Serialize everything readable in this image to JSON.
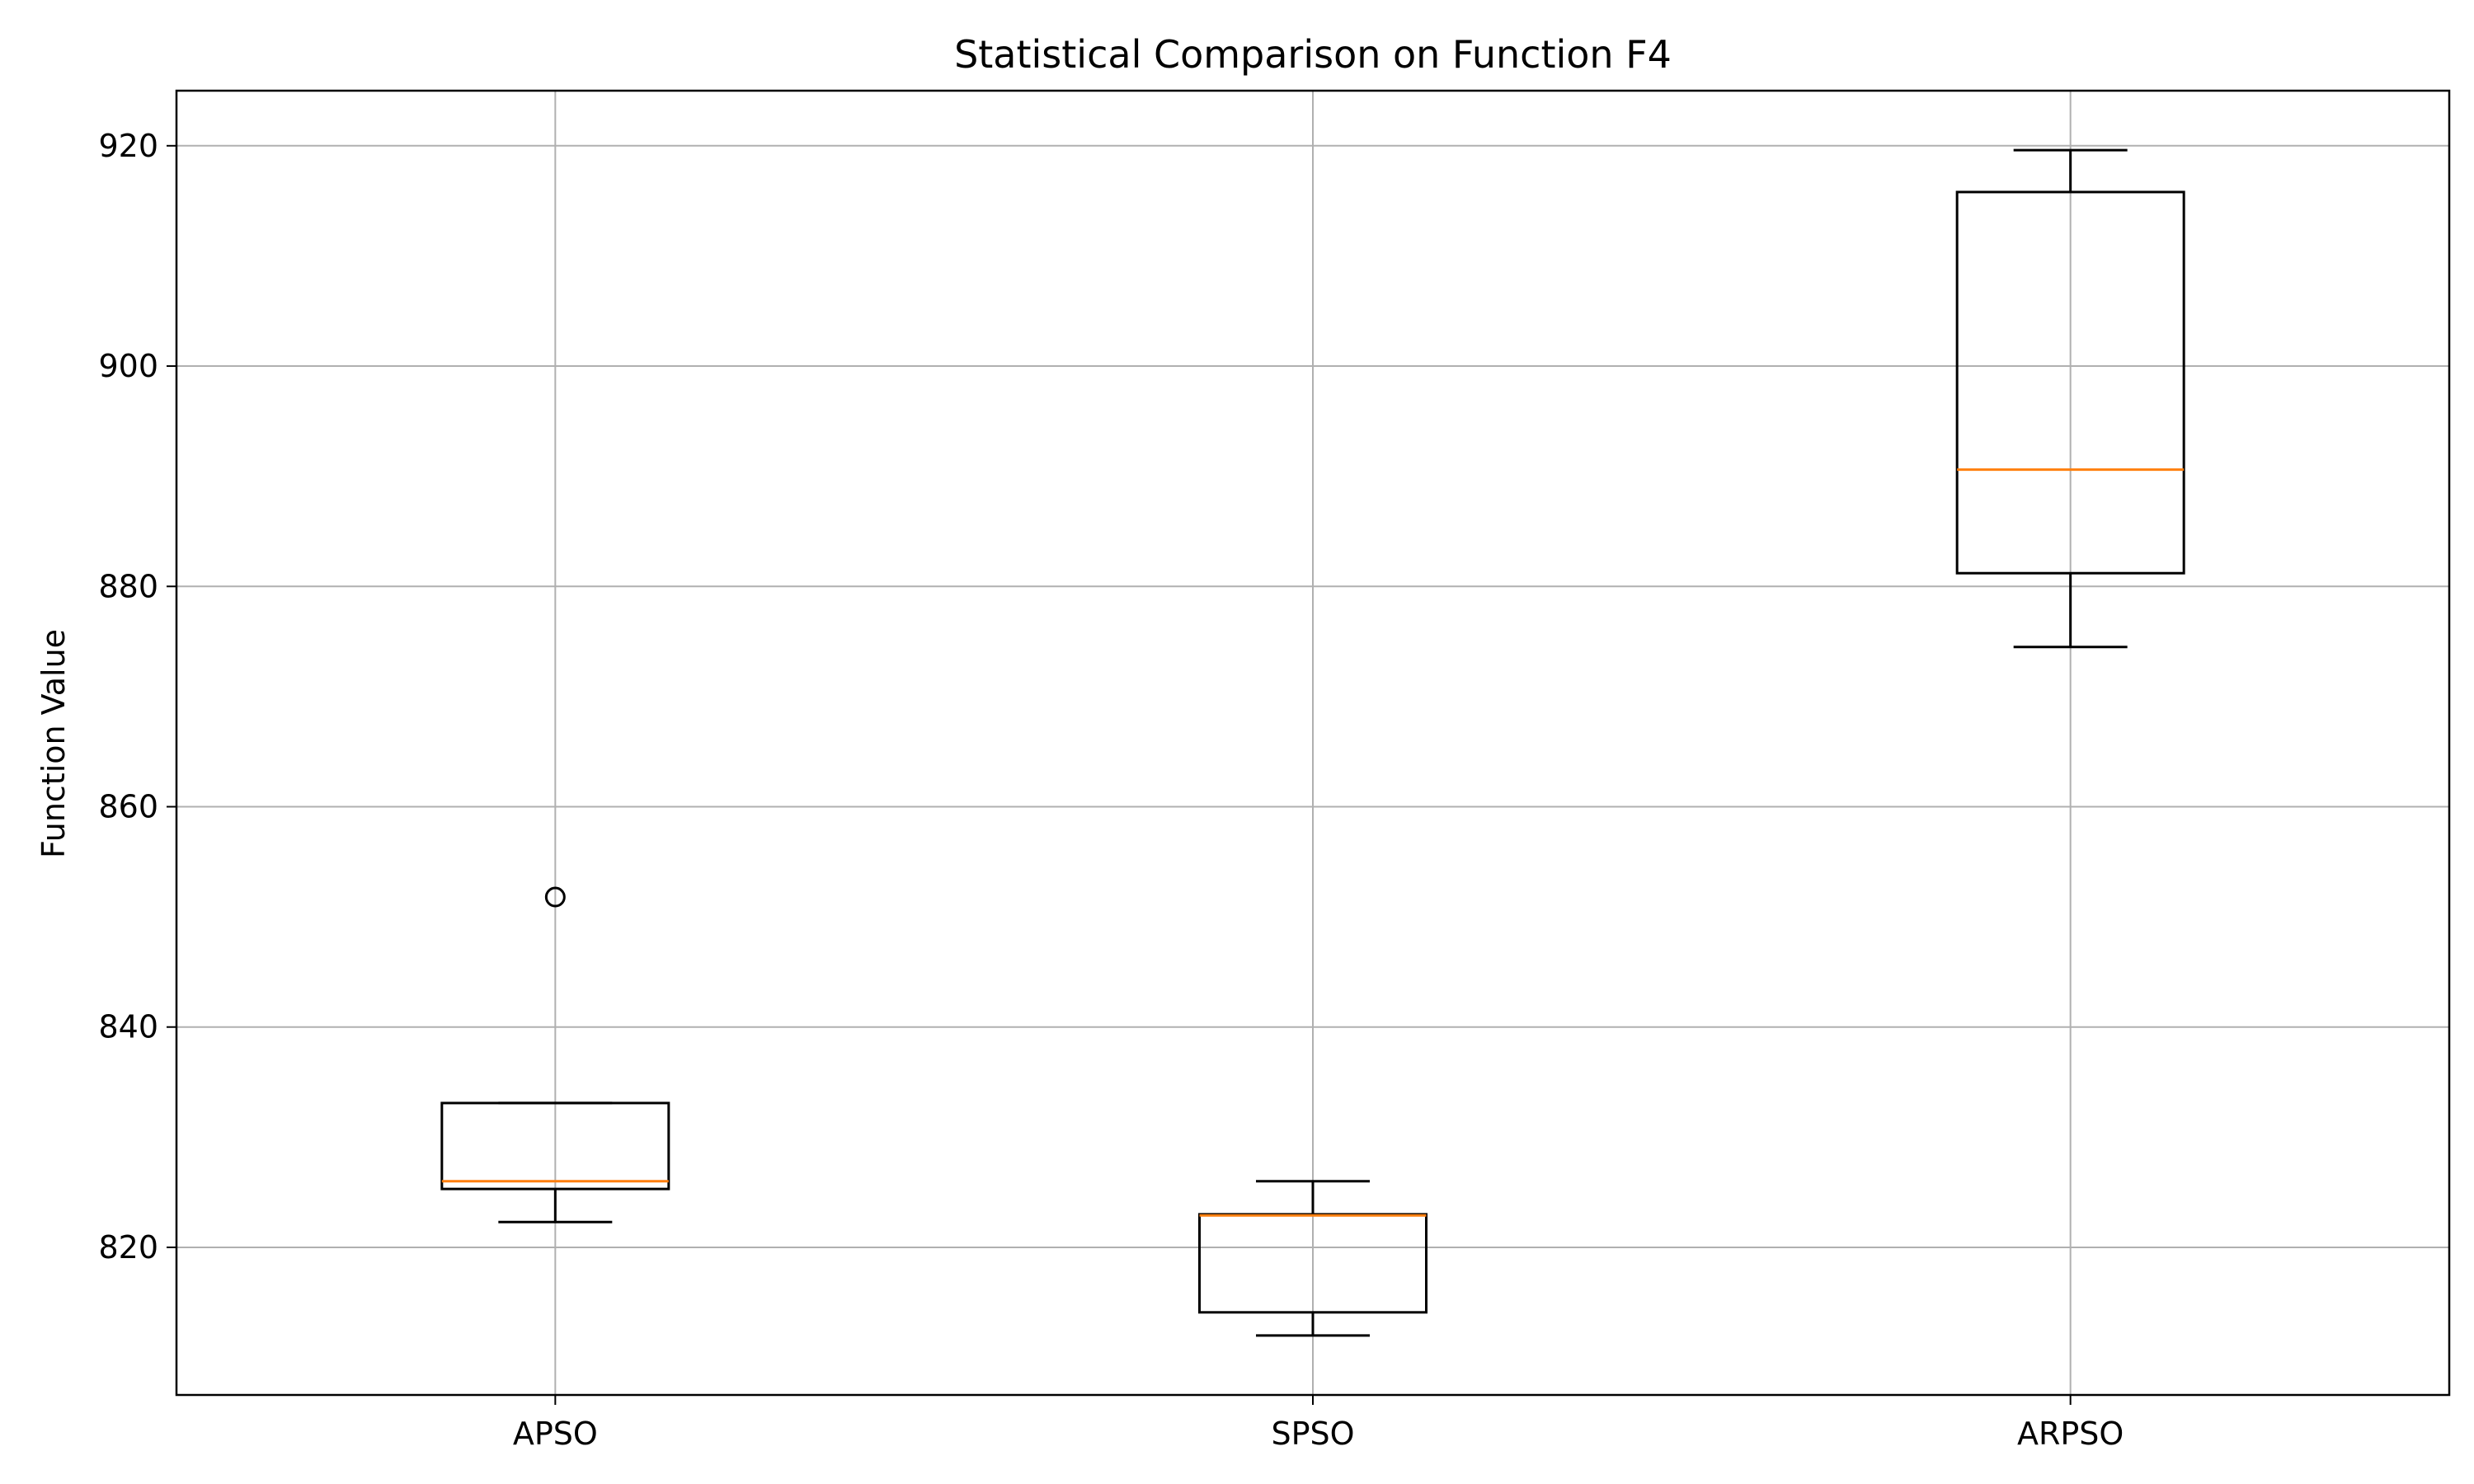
{
  "chart_data": {
    "type": "box",
    "title": "Statistical Comparison on Function F4",
    "xlabel": "",
    "ylabel": "Function Value",
    "categories": [
      "APSO",
      "SPSO",
      "ARPSO"
    ],
    "boxes": [
      {
        "category": "APSO",
        "whisker_low": 822.3,
        "q1": 825.3,
        "median": 826.0,
        "q3": 833.1,
        "whisker_high": 833.1,
        "outliers": [
          851.8
        ]
      },
      {
        "category": "SPSO",
        "whisker_low": 812.0,
        "q1": 814.1,
        "median": 822.9,
        "q3": 823.0,
        "whisker_high": 826.0,
        "outliers": []
      },
      {
        "category": "ARPSO",
        "whisker_low": 874.5,
        "q1": 881.2,
        "median": 890.6,
        "q3": 915.8,
        "whisker_high": 919.6,
        "outliers": []
      }
    ],
    "ylim": [
      806.6,
      925.0
    ],
    "yticks": [
      820,
      840,
      860,
      880,
      900,
      920
    ],
    "grid": true,
    "legend": "none",
    "colors": {
      "box": "#000000",
      "median": "#ff7f0e",
      "grid": "#b0b0b0"
    }
  }
}
